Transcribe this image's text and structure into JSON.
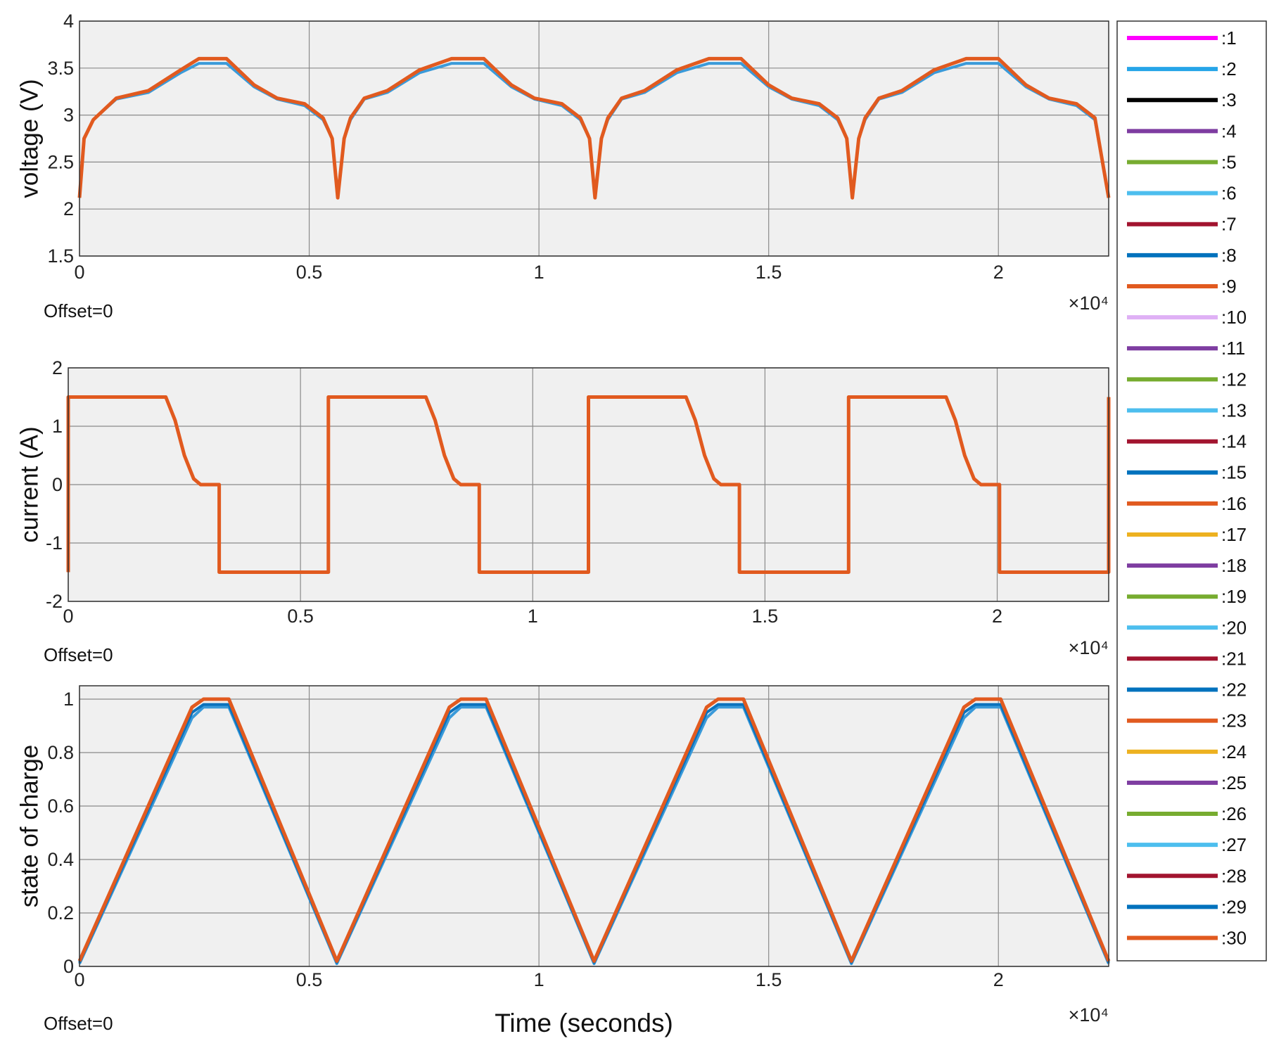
{
  "chart_data": [
    {
      "type": "line",
      "ylabel": "voltage (V)",
      "ylim": [
        1.5,
        4
      ],
      "yticks": [
        "1.5",
        "2",
        "2.5",
        "3",
        "3.5",
        "4"
      ],
      "xlim": [
        0,
        22400
      ],
      "xticks": [
        "0",
        "0.5",
        "1",
        "1.5",
        "2"
      ],
      "x_multiplier": "×10⁴",
      "offset_label": "Offset=0",
      "grid": true,
      "series": [
        {
          "color": "#3a9ad9",
          "x": [
            0,
            100,
            300,
            800,
            1500,
            2200,
            2600,
            3200,
            3800,
            4300,
            4900,
            5300,
            5500,
            5620,
            5760,
            5900,
            6200,
            6700,
            7400,
            8100,
            8500,
            8800,
            9400,
            9900,
            10500,
            10900,
            11100,
            11220,
            11360,
            11500,
            11800,
            12300,
            13000,
            13700,
            14100,
            14400,
            15000,
            15500,
            16100,
            16500,
            16700,
            16820,
            16960,
            17100,
            17400,
            17900,
            18600,
            19300,
            19700,
            20000,
            20600,
            21100,
            21700,
            22100,
            22400
          ],
          "y": [
            2.12,
            2.75,
            2.95,
            3.17,
            3.24,
            3.45,
            3.55,
            3.55,
            3.3,
            3.17,
            3.1,
            2.95,
            2.75,
            2.12,
            2.75,
            2.95,
            3.17,
            3.24,
            3.45,
            3.55,
            3.55,
            3.55,
            3.3,
            3.17,
            3.1,
            2.95,
            2.75,
            2.12,
            2.75,
            2.95,
            3.17,
            3.24,
            3.45,
            3.55,
            3.55,
            3.55,
            3.3,
            3.17,
            3.1,
            2.95,
            2.75,
            2.12,
            2.75,
            2.95,
            3.17,
            3.24,
            3.45,
            3.55,
            3.55,
            3.55,
            3.3,
            3.17,
            3.1,
            2.95,
            2.12
          ]
        },
        {
          "color": "#e15a1f",
          "x": [
            0,
            100,
            300,
            800,
            1500,
            2200,
            2600,
            3200,
            3800,
            4300,
            4900,
            5300,
            5500,
            5620,
            5760,
            5900,
            6200,
            6700,
            7400,
            8100,
            8500,
            8800,
            9400,
            9900,
            10500,
            10900,
            11100,
            11220,
            11360,
            11500,
            11800,
            12300,
            13000,
            13700,
            14100,
            14400,
            15000,
            15500,
            16100,
            16500,
            16700,
            16820,
            16960,
            17100,
            17400,
            17900,
            18600,
            19300,
            19700,
            20000,
            20600,
            21100,
            21700,
            22100,
            22400
          ],
          "y": [
            2.12,
            2.75,
            2.95,
            3.18,
            3.26,
            3.48,
            3.6,
            3.6,
            3.32,
            3.18,
            3.12,
            2.97,
            2.75,
            2.12,
            2.75,
            2.97,
            3.18,
            3.26,
            3.48,
            3.6,
            3.6,
            3.6,
            3.32,
            3.18,
            3.12,
            2.97,
            2.75,
            2.12,
            2.75,
            2.97,
            3.18,
            3.26,
            3.48,
            3.6,
            3.6,
            3.6,
            3.32,
            3.18,
            3.12,
            2.97,
            2.75,
            2.12,
            2.75,
            2.97,
            3.18,
            3.26,
            3.48,
            3.6,
            3.6,
            3.6,
            3.32,
            3.18,
            3.12,
            2.97,
            2.12
          ]
        }
      ]
    },
    {
      "type": "line",
      "ylabel": "current (A)",
      "ylim": [
        -2,
        2
      ],
      "yticks": [
        "-2",
        "-1",
        "0",
        "1",
        "2"
      ],
      "xlim": [
        0,
        22400
      ],
      "xticks": [
        "0",
        "0.5",
        "1",
        "1.5",
        "2"
      ],
      "x_multiplier": "×10⁴",
      "offset_label": "Offset=0",
      "grid": true,
      "series": [
        {
          "color": "#e15a1f",
          "x": [
            0,
            0,
            2100,
            2300,
            2500,
            2700,
            2850,
            3250,
            3250,
            5600,
            5600,
            7700,
            7900,
            8100,
            8300,
            8450,
            8850,
            8850,
            11200,
            11200,
            13300,
            13500,
            13700,
            13900,
            14050,
            14450,
            14450,
            16800,
            16800,
            18900,
            19100,
            19300,
            19500,
            19650,
            20050,
            20050,
            22400,
            22400
          ],
          "y": [
            -1.5,
            1.5,
            1.5,
            1.1,
            0.5,
            0.1,
            0,
            0,
            -1.5,
            -1.5,
            1.5,
            1.5,
            1.1,
            0.5,
            0.1,
            0,
            0,
            -1.5,
            -1.5,
            1.5,
            1.5,
            1.1,
            0.5,
            0.1,
            0,
            0,
            -1.5,
            -1.5,
            1.5,
            1.5,
            1.1,
            0.5,
            0.1,
            0,
            0,
            -1.5,
            -1.5,
            1.5
          ]
        }
      ]
    },
    {
      "type": "line",
      "ylabel": "state of charge",
      "xlabel": "Time (seconds)",
      "ylim": [
        0,
        1.05
      ],
      "yticks": [
        "0",
        "0.2",
        "0.4",
        "0.6",
        "0.8",
        "1"
      ],
      "xlim": [
        0,
        22400
      ],
      "xticks": [
        "0",
        "0.5",
        "1",
        "1.5",
        "2"
      ],
      "x_multiplier": "×10⁴",
      "offset_label": "Offset=0",
      "grid": true,
      "series": [
        {
          "color": "#3a9ad9",
          "x": [
            0,
            2450,
            2700,
            3250,
            5600,
            8050,
            8300,
            8850,
            11200,
            13650,
            13900,
            14450,
            16800,
            19250,
            19500,
            20050,
            22400
          ],
          "y": [
            0.01,
            0.93,
            0.97,
            0.97,
            0.01,
            0.93,
            0.97,
            0.97,
            0.01,
            0.93,
            0.97,
            0.97,
            0.01,
            0.93,
            0.97,
            0.97,
            0.01
          ]
        },
        {
          "color": "#0b72bd",
          "x": [
            0,
            2450,
            2700,
            3250,
            5600,
            8050,
            8300,
            8850,
            11200,
            13650,
            13900,
            14450,
            16800,
            19250,
            19500,
            20050,
            22400
          ],
          "y": [
            0.015,
            0.95,
            0.98,
            0.98,
            0.015,
            0.95,
            0.98,
            0.98,
            0.015,
            0.95,
            0.98,
            0.98,
            0.015,
            0.95,
            0.98,
            0.98,
            0.015
          ]
        },
        {
          "color": "#e15a1f",
          "x": [
            0,
            2450,
            2700,
            3250,
            5600,
            8050,
            8300,
            8850,
            11200,
            13650,
            13900,
            14450,
            16800,
            19250,
            19500,
            20050,
            22400
          ],
          "y": [
            0.02,
            0.97,
            1.0,
            1.0,
            0.02,
            0.97,
            1.0,
            1.0,
            0.02,
            0.97,
            1.0,
            1.0,
            0.02,
            0.97,
            1.0,
            1.0,
            0.02
          ]
        }
      ]
    }
  ],
  "legend": {
    "items": [
      {
        "label": ":1",
        "color": "#ff00ff"
      },
      {
        "label": ":2",
        "color": "#26a5e8"
      },
      {
        "label": ":3",
        "color": "#000000"
      },
      {
        "label": ":4",
        "color": "#7e3da1"
      },
      {
        "label": ":5",
        "color": "#77ac30"
      },
      {
        "label": ":6",
        "color": "#4dbeee"
      },
      {
        "label": ":7",
        "color": "#a2142f"
      },
      {
        "label": ":8",
        "color": "#0072bd"
      },
      {
        "label": ":9",
        "color": "#e15a1f"
      },
      {
        "label": ":10",
        "color": "#dfb0f5"
      },
      {
        "label": ":11",
        "color": "#7e3da1"
      },
      {
        "label": ":12",
        "color": "#77ac30"
      },
      {
        "label": ":13",
        "color": "#4dbeee"
      },
      {
        "label": ":14",
        "color": "#a2142f"
      },
      {
        "label": ":15",
        "color": "#0072bd"
      },
      {
        "label": ":16",
        "color": "#e15a1f"
      },
      {
        "label": ":17",
        "color": "#edb120"
      },
      {
        "label": ":18",
        "color": "#7e3da1"
      },
      {
        "label": ":19",
        "color": "#77ac30"
      },
      {
        "label": ":20",
        "color": "#4dbeee"
      },
      {
        "label": ":21",
        "color": "#a2142f"
      },
      {
        "label": ":22",
        "color": "#0072bd"
      },
      {
        "label": ":23",
        "color": "#e15a1f"
      },
      {
        "label": ":24",
        "color": "#edb120"
      },
      {
        "label": ":25",
        "color": "#7e3da1"
      },
      {
        "label": ":26",
        "color": "#77ac30"
      },
      {
        "label": ":27",
        "color": "#4dbeee"
      },
      {
        "label": ":28",
        "color": "#a2142f"
      },
      {
        "label": ":29",
        "color": "#0072bd"
      },
      {
        "label": ":30",
        "color": "#e15a1f"
      }
    ]
  }
}
